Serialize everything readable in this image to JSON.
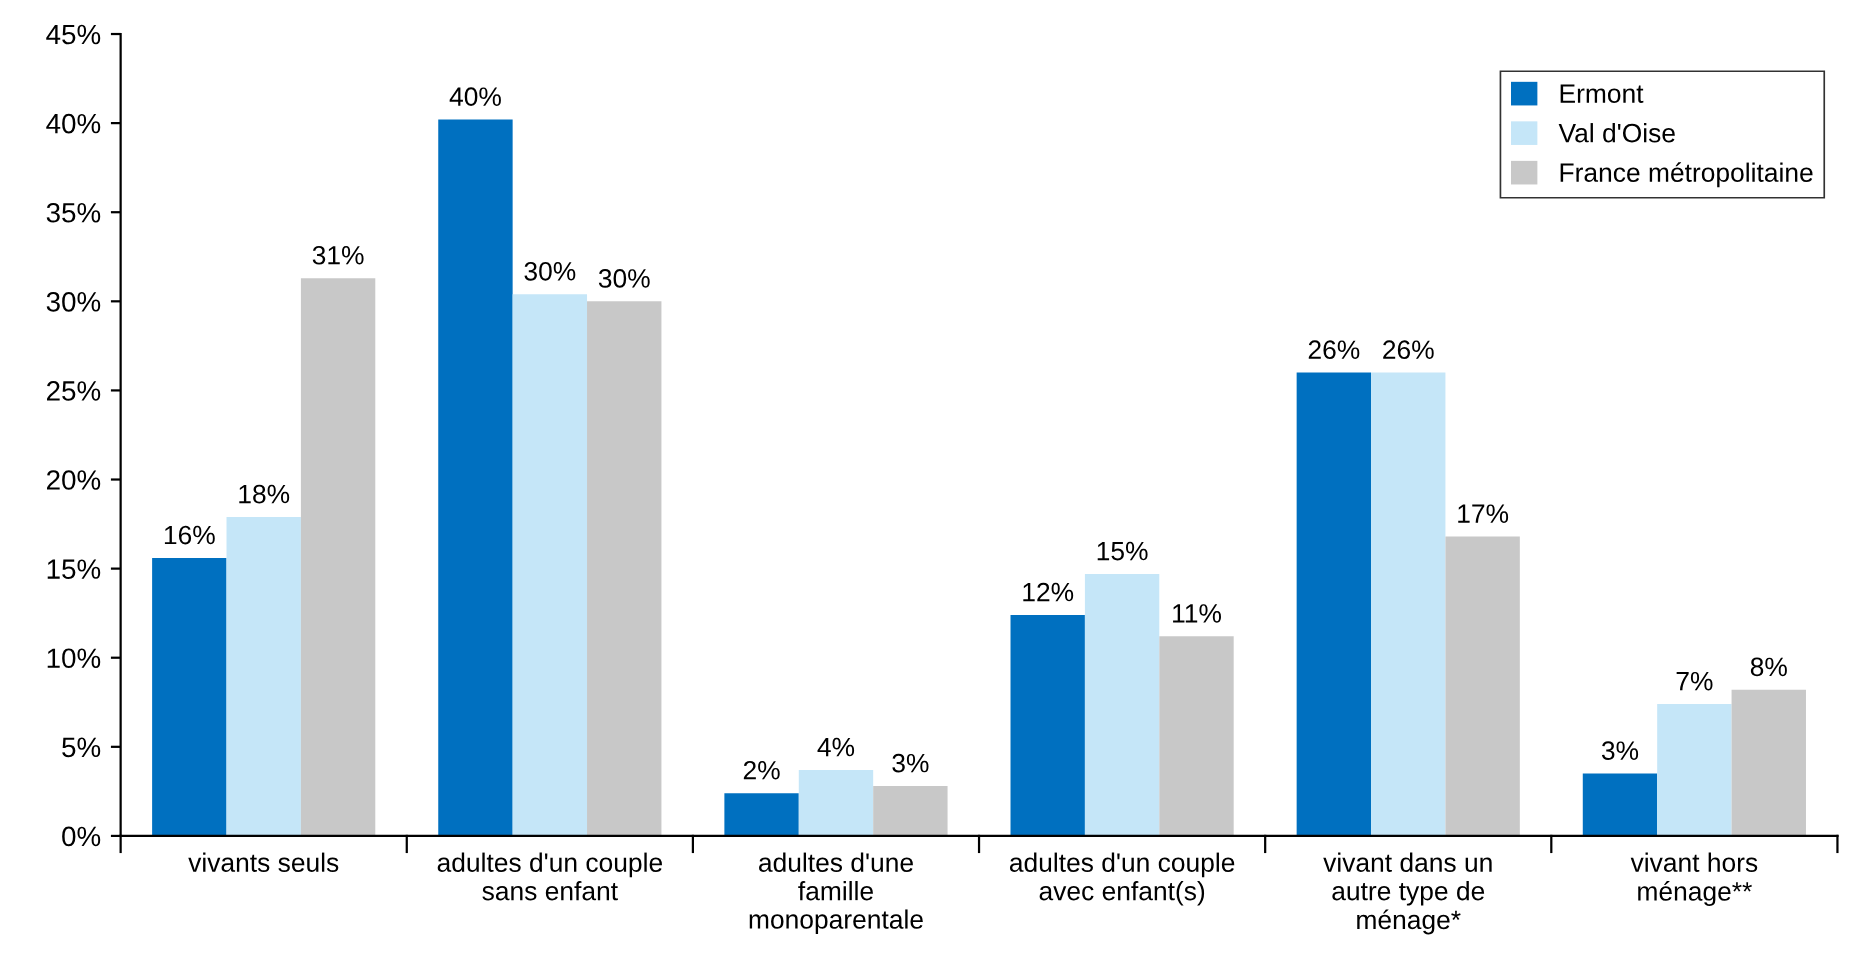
{
  "chart_data": {
    "type": "bar",
    "categories": [
      "vivants seuls",
      "adultes d'un couple\nsans enfant",
      "adultes d'une\nfamille\nmonoparentale",
      "adultes d'un couple\navec enfant(s)",
      "vivant dans un\nautre type de\nménage*",
      "vivant hors\nménage**"
    ],
    "series": [
      {
        "name": "Ermont",
        "color": "#0070c0",
        "values": [
          15.6,
          40.2,
          2.4,
          12.4,
          26.0,
          3.5
        ],
        "value_labels": [
          "16%",
          "40%",
          "2%",
          "12%",
          "26%",
          "3%"
        ]
      },
      {
        "name": "Val d'Oise",
        "color": "#c5e6f8",
        "values": [
          17.9,
          30.4,
          3.7,
          14.7,
          26.0,
          7.4
        ],
        "value_labels": [
          "18%",
          "30%",
          "4%",
          "15%",
          "26%",
          "7%"
        ]
      },
      {
        "name": "France métropolitaine",
        "color": "#c8c8c8",
        "values": [
          31.3,
          30.0,
          2.8,
          11.2,
          16.8,
          8.2
        ],
        "value_labels": [
          "31%",
          "30%",
          "3%",
          "11%",
          "17%",
          "8%"
        ]
      }
    ],
    "ylim": [
      0,
      45
    ],
    "yticks": [
      {
        "value": 0,
        "label": "0%"
      },
      {
        "value": 5,
        "label": "5%"
      },
      {
        "value": 10,
        "label": "10%"
      },
      {
        "value": 15,
        "label": "15%"
      },
      {
        "value": 20,
        "label": "20%"
      },
      {
        "value": 25,
        "label": "25%"
      },
      {
        "value": 30,
        "label": "30%"
      },
      {
        "value": 35,
        "label": "35%"
      },
      {
        "value": 40,
        "label": "40%"
      },
      {
        "value": 45,
        "label": "45%"
      }
    ],
    "grid": false,
    "legend": "top right"
  }
}
